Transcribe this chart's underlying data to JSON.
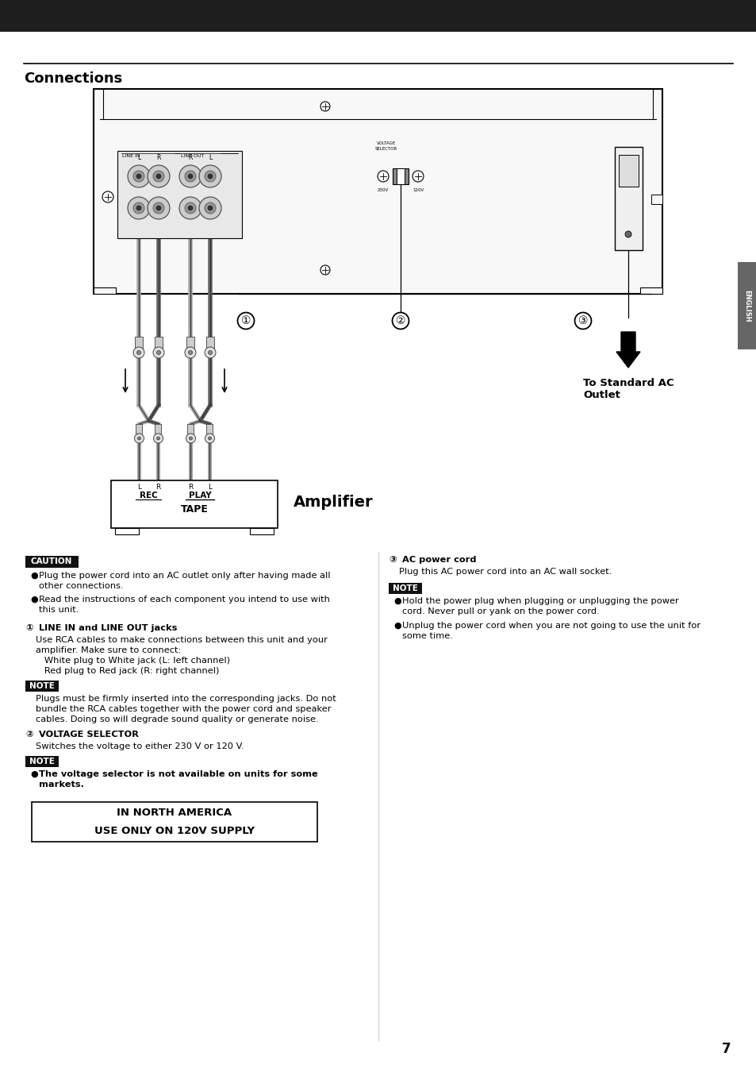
{
  "title": "Connections",
  "page_number": "7",
  "bg": "#ffffff",
  "header_bar_color": "#1e1e1e",
  "english_tab_color": "#666666",
  "caution_text": "CAUTION",
  "note_text": "NOTE",
  "to_ac_outlet": "To Standard AC\nOutlet",
  "amplifier_label": "Amplifier",
  "tape_label": "TAPE",
  "rec_label": "REC",
  "play_label": "PLAY",
  "caution_bullets": [
    "Plug the power cord into an AC outlet only after having made all other connections.",
    "Read the instructions of each component you intend to use with this unit."
  ],
  "item1_title_num": "①",
  "item1_title_text": " LINE IN and LINE OUT jacks",
  "item1_lines": [
    "Use RCA cables to make connections between this unit and your",
    "amplifier. Make sure to connect:",
    "   White plug to White jack (L: left channel)",
    "   Red plug to Red jack (R: right channel)"
  ],
  "note1_lines": [
    "Plugs must be firmly inserted into the corresponding jacks. Do not",
    "bundle the RCA cables together with the power cord and speaker",
    "cables. Doing so will degrade sound quality or generate noise."
  ],
  "item2_title_num": "②",
  "item2_title_text": " VOLTAGE SELECTOR",
  "item2_lines": [
    "Switches the voltage to either 230 V or 120 V."
  ],
  "note2_bold_line": "The voltage selector is not available on units for some",
  "note2_bold_line2": "markets.",
  "item3_title_num": "③",
  "item3_title_text": " AC power cord",
  "item3_lines": [
    "Plug this AC power cord into an AC wall socket."
  ],
  "note3_bullets": [
    "Hold the power plug when plugging or unplugging the power cord. Never pull or yank on the power cord.",
    "Unplug the power cord when you are not going to use the unit for some time."
  ],
  "box_line1": "IN NORTH AMERICA",
  "box_line2": "USE ONLY ON 120V SUPPLY"
}
